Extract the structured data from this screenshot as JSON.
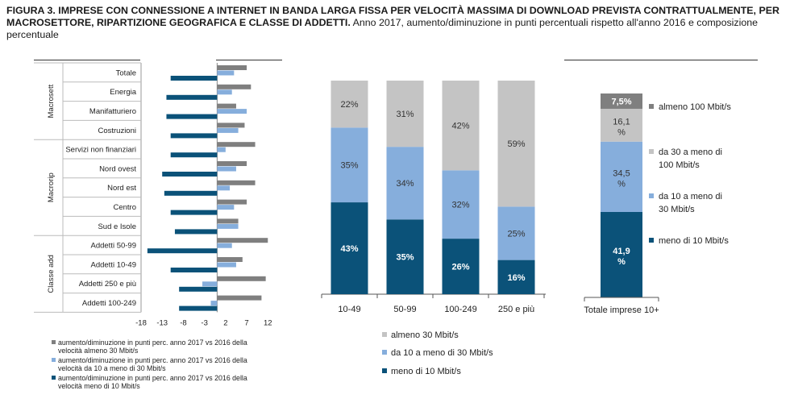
{
  "header": {
    "title_bold": "FIGURA 3. IMPRESE CON CONNESSIONE A INTERNET IN BANDA LARGA FISSA PER VELOCITÀ MASSIMA DI DOWNLOAD PREVISTA CONTRATTUALMENTE, PER MACROSETTORE, RIPARTIZIONE GEOGRAFICA E CLASSE DI ADDETTI.",
    "title_rest": "Anno 2017, aumento/diminuzione in punti percentuali rispetto all'anno 2016 e composizione percentuale"
  },
  "colors": {
    "dark_blue": "#0b5279",
    "light_blue": "#86aedc",
    "gray": "#7f7f7f",
    "light_gray": "#c4c4c4"
  },
  "chart_data": [
    {
      "type": "bar",
      "orientation": "horizontal",
      "categories": [
        "Totale",
        "Energia",
        "Manifatturiero",
        "Costruzioni",
        "Servizi non finanziari",
        "Nord ovest",
        "Nord est",
        "Centro",
        "Sud e Isole",
        "Addetti 50-99",
        "Addetti 10-49",
        "Addetti 250 e più",
        "Addetti 100-249"
      ],
      "groups": [
        {
          "label": "Macrosett",
          "from": 0,
          "to": 3
        },
        {
          "label": "Macrorip",
          "from": 4,
          "to": 8
        },
        {
          "label": "Classe add",
          "from": 9,
          "to": 12
        }
      ],
      "series": [
        {
          "name": "aumento/diminuzione in punti perc. anno 2017 vs 2016 della velocità almeno 30 Mbit/s",
          "color": "#7f7f7f",
          "values": [
            7,
            8,
            4.5,
            6.5,
            9,
            7,
            9,
            7,
            5,
            12,
            6,
            11.5,
            10.5
          ]
        },
        {
          "name": "aumento/diminuzione in punti perc. anno 2017 vs 2016 della velocità da 10 a meno di 30 Mbit/s",
          "color": "#86aedc",
          "values": [
            4,
            3.5,
            7,
            5,
            2,
            4.5,
            3,
            4,
            5,
            3.5,
            4.5,
            -3.5,
            -1.5
          ]
        },
        {
          "name": "aumento/diminuzione in punti perc. anno 2017 vs 2016 della velocità meno di 10 Mbit/s",
          "color": "#0b5279",
          "values": [
            -11,
            -12,
            -12,
            -11,
            -11,
            -13,
            -12.5,
            -11,
            -10,
            -16.5,
            -11,
            -9,
            -9
          ]
        }
      ],
      "ticks": [
        -18,
        -13,
        -8,
        -3,
        2,
        7,
        12
      ],
      "xlim": [
        -18,
        15
      ]
    },
    {
      "type": "bar",
      "stacked": true,
      "categories": [
        "10-49",
        "50-99",
        "100-249",
        "250 e più"
      ],
      "series": [
        {
          "name": "meno di 10 Mbit/s",
          "color": "#0b5279",
          "values": [
            43,
            35,
            26,
            16
          ],
          "labels": [
            "43%",
            "35%",
            "26%",
            "16%"
          ]
        },
        {
          "name": "da 10 a meno di 30 Mbit/s",
          "color": "#86aedc",
          "values": [
            35,
            34,
            32,
            25
          ],
          "labels": [
            "35%",
            "34%",
            "32%",
            "25%"
          ]
        },
        {
          "name": "almeno 30 Mbit/s",
          "color": "#c4c4c4",
          "values": [
            22,
            31,
            42,
            59
          ],
          "labels": [
            "22%",
            "31%",
            "42%",
            "59%"
          ]
        }
      ],
      "ylim": [
        0,
        100
      ]
    },
    {
      "type": "bar",
      "stacked": true,
      "categories": [
        "Totale imprese 10+"
      ],
      "series": [
        {
          "name": "meno di 10 Mbit/s",
          "color": "#0b5279",
          "values": [
            41.9
          ],
          "labels": [
            "41,9",
            "%"
          ]
        },
        {
          "name": "da 10 a meno di 30 Mbit/s",
          "color": "#86aedc",
          "values": [
            34.5
          ],
          "labels": [
            "34,5",
            "%"
          ]
        },
        {
          "name": "da 30 a meno di 100 Mbit/s",
          "color": "#c4c4c4",
          "values": [
            16.1
          ],
          "labels": [
            "16,1",
            "%"
          ]
        },
        {
          "name": "almeno 100 Mbit/s",
          "color": "#7f7f7f",
          "values": [
            7.5
          ],
          "labels": [
            "7,5%"
          ]
        }
      ],
      "legend": [
        {
          "text": "almeno 100 Mbit/s",
          "color": "#7f7f7f"
        },
        {
          "text": "da 30 a meno di 100 Mbit/s",
          "color": "#c4c4c4"
        },
        {
          "text": "da 10 a meno di 30 Mbit/s",
          "color": "#86aedc"
        },
        {
          "text": "meno di 10 Mbit/s",
          "color": "#0b5279"
        }
      ],
      "ylim": [
        0,
        100
      ]
    }
  ]
}
